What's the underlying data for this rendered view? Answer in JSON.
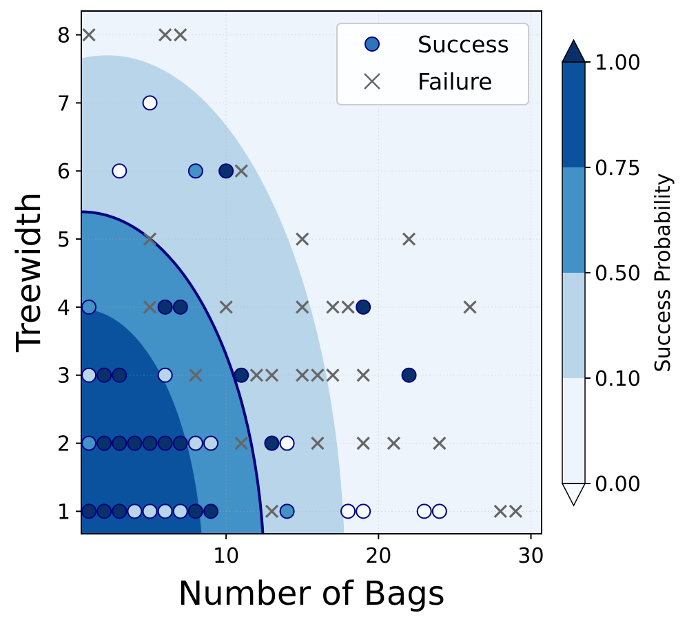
{
  "chart_data": {
    "type": "scatter",
    "xlabel": "Number of Bags",
    "ylabel": "Treewidth",
    "xlim": [
      0.5,
      30.7
    ],
    "ylim": [
      0.67,
      8.35
    ],
    "xticks": [
      10,
      20,
      30
    ],
    "yticks": [
      1,
      2,
      3,
      4,
      5,
      6,
      7,
      8
    ],
    "grid": true,
    "legend": {
      "placement": "top-right",
      "entries": [
        {
          "label": "Success",
          "marker": "circle",
          "color": "#2e75b8"
        },
        {
          "label": "Failure",
          "marker": "x",
          "color": "#666666"
        }
      ]
    },
    "contour": {
      "description_levels": [
        0.1,
        0.5,
        0.75
      ],
      "decision_boundary_level": 0.5,
      "boundaries": [
        {
          "level": 0.75,
          "x_at_y0": 8.5,
          "x_max_extent": 8.5,
          "y_max": 3.97,
          "x_peak": 0.5
        },
        {
          "level": 0.5,
          "x_at_y0": 12.5,
          "x_max_extent": 12.5,
          "y_max": 5.4,
          "x_peak": 0.5
        },
        {
          "level": 0.1,
          "x_at_y0": 17.8,
          "x_max_extent": 17.8,
          "y_max": 7.7,
          "x_peak": 2.2
        }
      ],
      "boundary_line_color": "#000080"
    },
    "colorbar": {
      "label": "Success Probability",
      "ticks": [
        "0.00",
        "0.10",
        "0.50",
        "0.75",
        "1.00"
      ],
      "bands": [
        {
          "from": 0.0,
          "to": 0.1,
          "color": "#eef4fc"
        },
        {
          "from": 0.1,
          "to": 0.5,
          "color": "#b9d5ea"
        },
        {
          "from": 0.5,
          "to": 0.75,
          "color": "#4291c7"
        },
        {
          "from": 0.75,
          "to": 1.0,
          "color": "#0a529e"
        }
      ],
      "extend_min_color": "#f7fbff",
      "extend_max_color": "#08306b"
    },
    "series": [
      {
        "name": "Success",
        "points": [
          {
            "x": 1,
            "y": 1,
            "p": 0.95
          },
          {
            "x": 2,
            "y": 1,
            "p": 0.95
          },
          {
            "x": 3,
            "y": 1,
            "p": 0.95
          },
          {
            "x": 4,
            "y": 1,
            "p": 0.3
          },
          {
            "x": 5,
            "y": 1,
            "p": 0.3
          },
          {
            "x": 6,
            "y": 1,
            "p": 0.3
          },
          {
            "x": 7,
            "y": 1,
            "p": 0.15
          },
          {
            "x": 8,
            "y": 1,
            "p": 0.95
          },
          {
            "x": 9,
            "y": 1,
            "p": 0.95
          },
          {
            "x": 14,
            "y": 1,
            "p": 0.6
          },
          {
            "x": 18,
            "y": 1,
            "p": 0.02
          },
          {
            "x": 19,
            "y": 1,
            "p": 0.02
          },
          {
            "x": 23,
            "y": 1,
            "p": 0.02
          },
          {
            "x": 24,
            "y": 1,
            "p": 0.02
          },
          {
            "x": 1,
            "y": 2,
            "p": 0.6
          },
          {
            "x": 2,
            "y": 2,
            "p": 0.95
          },
          {
            "x": 3,
            "y": 2,
            "p": 0.95
          },
          {
            "x": 4,
            "y": 2,
            "p": 0.95
          },
          {
            "x": 5,
            "y": 2,
            "p": 0.95
          },
          {
            "x": 6,
            "y": 2,
            "p": 0.95
          },
          {
            "x": 7,
            "y": 2,
            "p": 0.95
          },
          {
            "x": 8,
            "y": 2,
            "p": 0.3
          },
          {
            "x": 9,
            "y": 2,
            "p": 0.3
          },
          {
            "x": 13,
            "y": 2,
            "p": 0.95
          },
          {
            "x": 14,
            "y": 2,
            "p": 0.02
          },
          {
            "x": 1,
            "y": 3,
            "p": 0.3
          },
          {
            "x": 2,
            "y": 3,
            "p": 0.95
          },
          {
            "x": 3,
            "y": 3,
            "p": 0.95
          },
          {
            "x": 6,
            "y": 3,
            "p": 0.3
          },
          {
            "x": 11,
            "y": 3,
            "p": 0.95
          },
          {
            "x": 22,
            "y": 3,
            "p": 0.95
          },
          {
            "x": 1,
            "y": 4,
            "p": 0.6
          },
          {
            "x": 6,
            "y": 4,
            "p": 0.95
          },
          {
            "x": 7,
            "y": 4,
            "p": 0.95
          },
          {
            "x": 19,
            "y": 4,
            "p": 0.95
          },
          {
            "x": 3,
            "y": 6,
            "p": 0.02
          },
          {
            "x": 8,
            "y": 6,
            "p": 0.6
          },
          {
            "x": 10,
            "y": 6,
            "p": 0.95
          },
          {
            "x": 5,
            "y": 7,
            "p": 0.02
          }
        ]
      },
      {
        "name": "Failure",
        "points": [
          {
            "x": 13,
            "y": 1
          },
          {
            "x": 28,
            "y": 1
          },
          {
            "x": 29,
            "y": 1
          },
          {
            "x": 11,
            "y": 2
          },
          {
            "x": 16,
            "y": 2
          },
          {
            "x": 19,
            "y": 2
          },
          {
            "x": 21,
            "y": 2
          },
          {
            "x": 24,
            "y": 2
          },
          {
            "x": 8,
            "y": 3
          },
          {
            "x": 12,
            "y": 3
          },
          {
            "x": 13,
            "y": 3
          },
          {
            "x": 15,
            "y": 3
          },
          {
            "x": 16,
            "y": 3
          },
          {
            "x": 17,
            "y": 3
          },
          {
            "x": 19,
            "y": 3
          },
          {
            "x": 5,
            "y": 4
          },
          {
            "x": 10,
            "y": 4
          },
          {
            "x": 15,
            "y": 4
          },
          {
            "x": 17,
            "y": 4
          },
          {
            "x": 18,
            "y": 4
          },
          {
            "x": 26,
            "y": 4
          },
          {
            "x": 5,
            "y": 5
          },
          {
            "x": 15,
            "y": 5
          },
          {
            "x": 22,
            "y": 5
          },
          {
            "x": 11,
            "y": 6
          },
          {
            "x": 1,
            "y": 8
          },
          {
            "x": 6,
            "y": 8
          },
          {
            "x": 7,
            "y": 8
          }
        ]
      }
    ]
  }
}
